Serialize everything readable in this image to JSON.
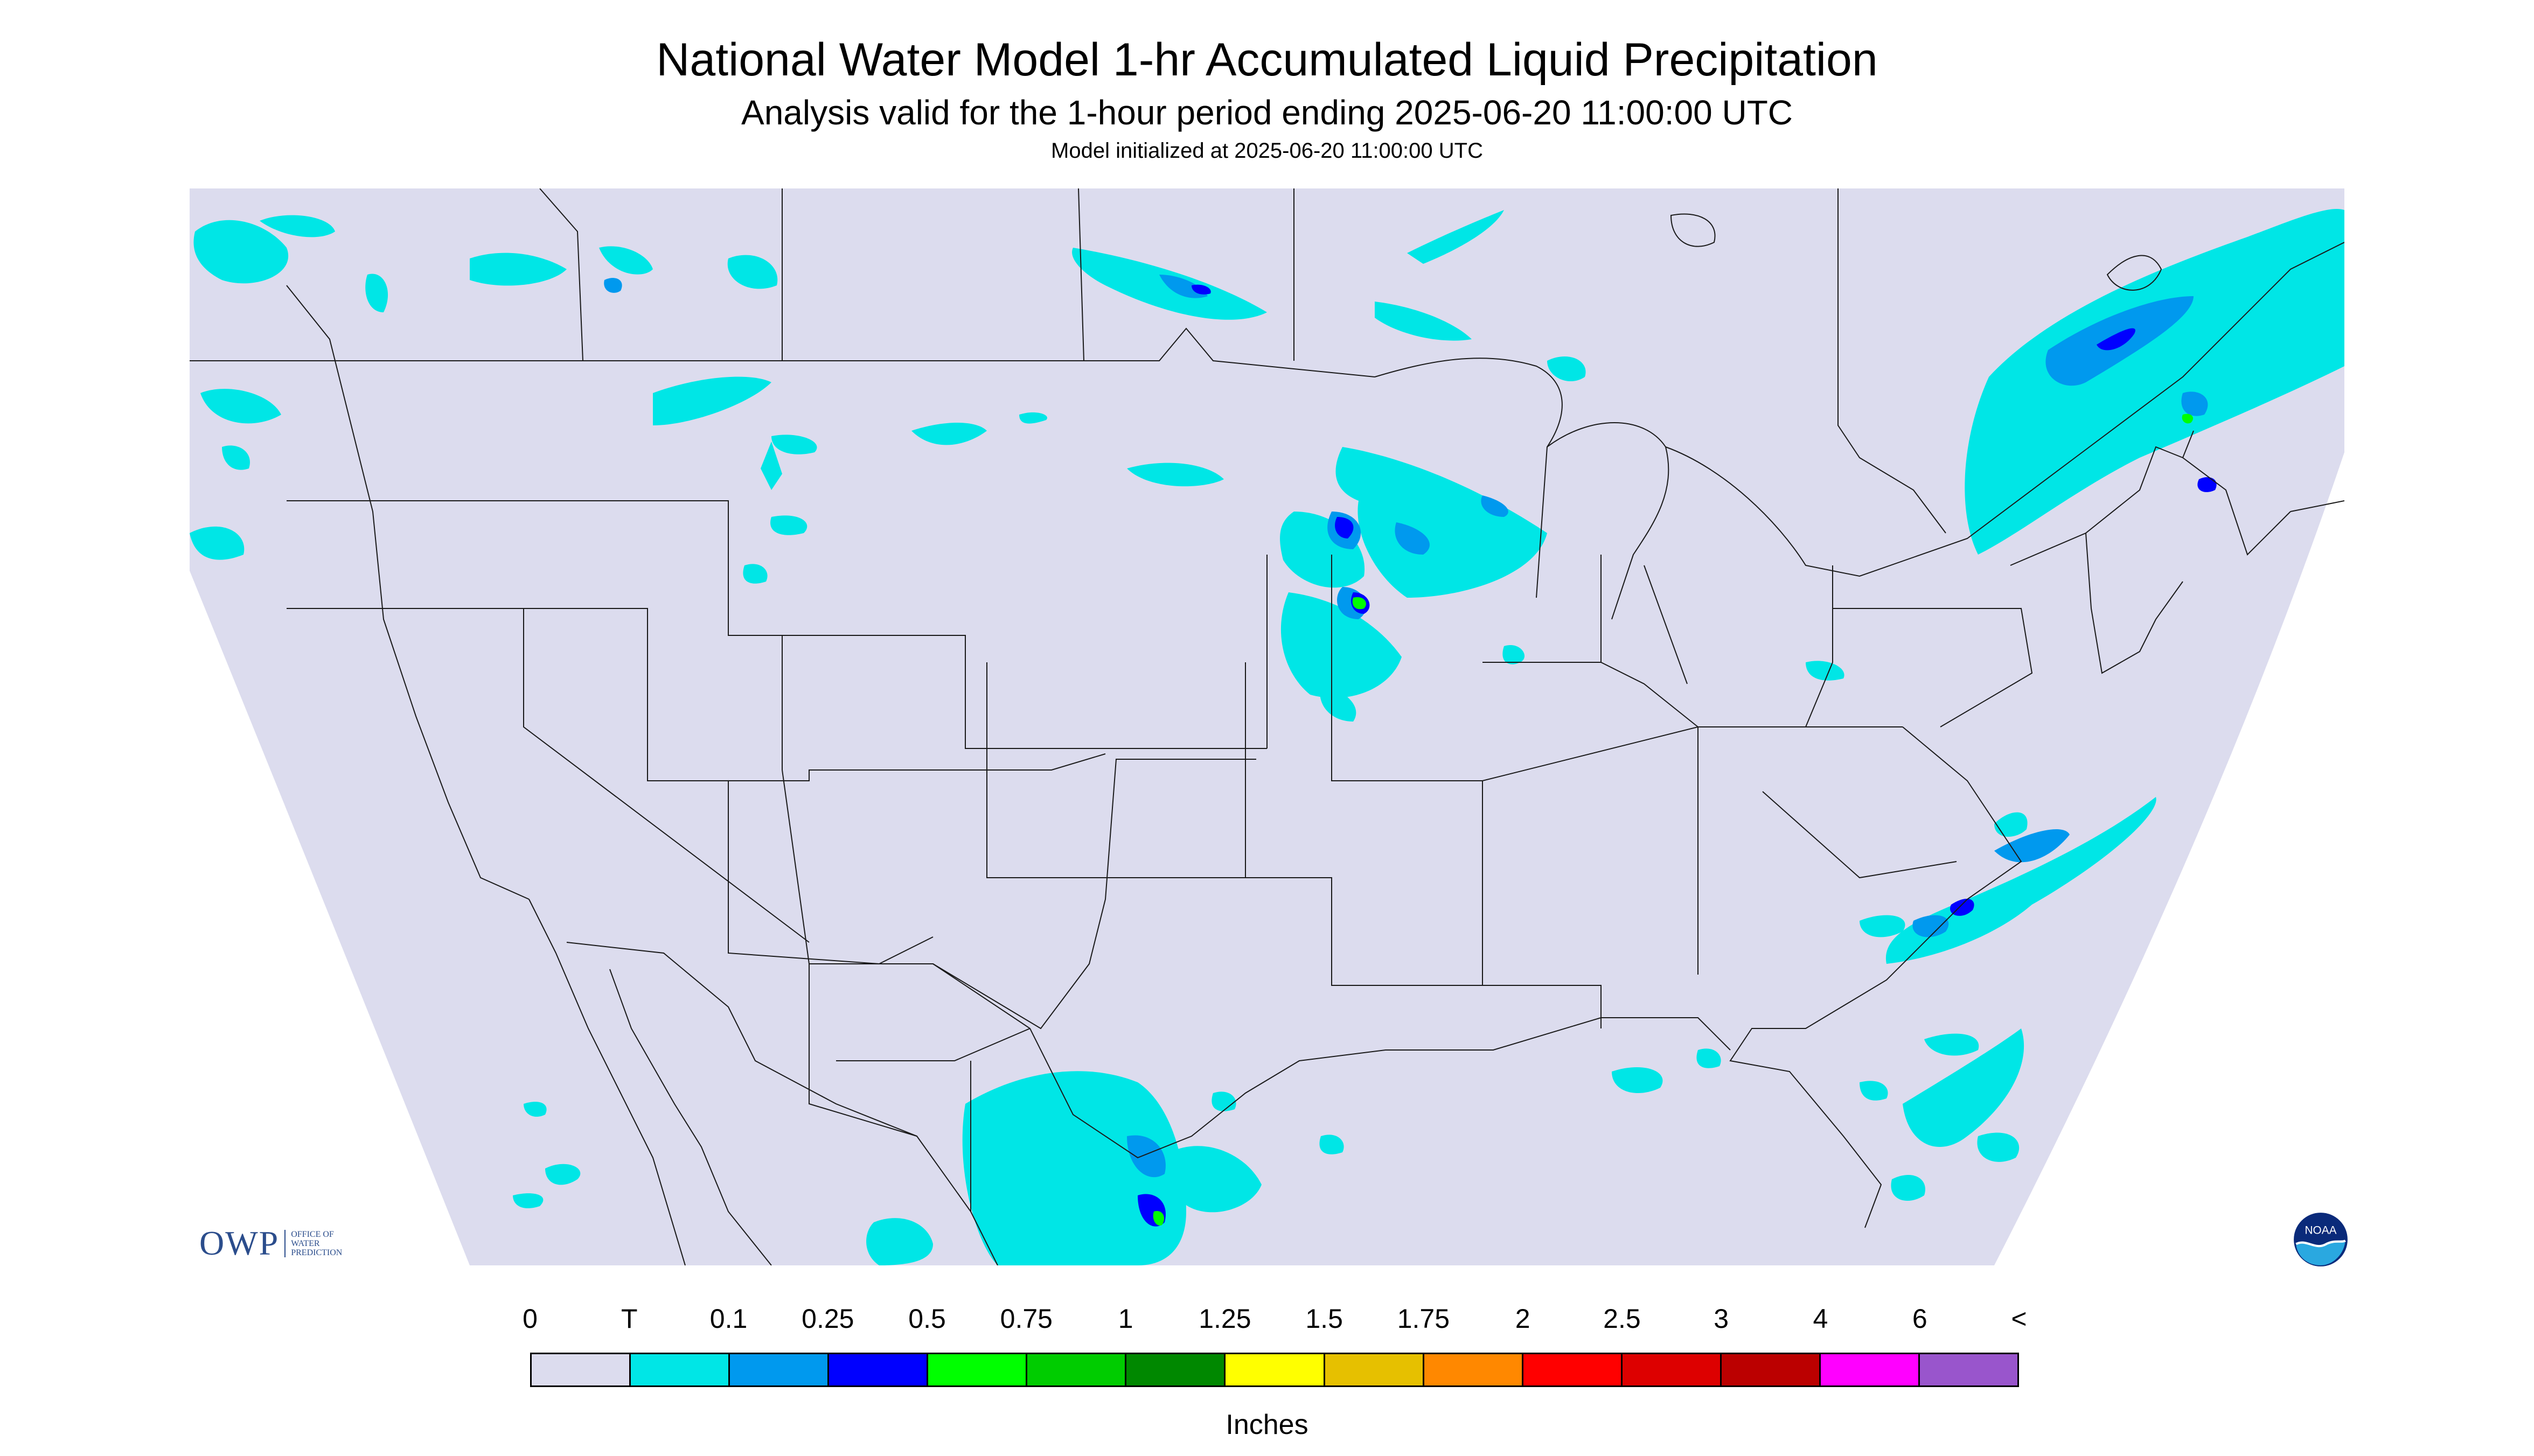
{
  "header": {
    "title": "National Water Model 1-hr Accumulated Liquid Precipitation",
    "subtitle": "Analysis valid for the 1-hour period ending 2025-06-20 11:00:00 UTC",
    "init": "Model initialized at 2025-06-20 11:00:00 UTC"
  },
  "map": {
    "background_color": "#ffffff",
    "domain_color": "#dcdcee",
    "border_color": "#1a1a1a"
  },
  "legend": {
    "labels": [
      "0",
      "T",
      "0.1",
      "0.25",
      "0.5",
      "0.75",
      "1",
      "1.25",
      "1.5",
      "1.75",
      "2",
      "2.5",
      "3",
      "4",
      "6",
      "<"
    ],
    "colors": [
      "#dcdcee",
      "#00e6e6",
      "#0099ee",
      "#0000ff",
      "#00ff00",
      "#00cc00",
      "#008800",
      "#ffff00",
      "#e6c000",
      "#ff8800",
      "#ff0000",
      "#dd0000",
      "#bb0000",
      "#ff00ff",
      "#9955cc"
    ],
    "units": "Inches"
  },
  "logos": {
    "owp_text": "OWP",
    "owp_sub_1": "OFFICE OF",
    "owp_sub_2": "WATER",
    "owp_sub_3": "PREDICTION",
    "noaa_text": "NOAA"
  }
}
